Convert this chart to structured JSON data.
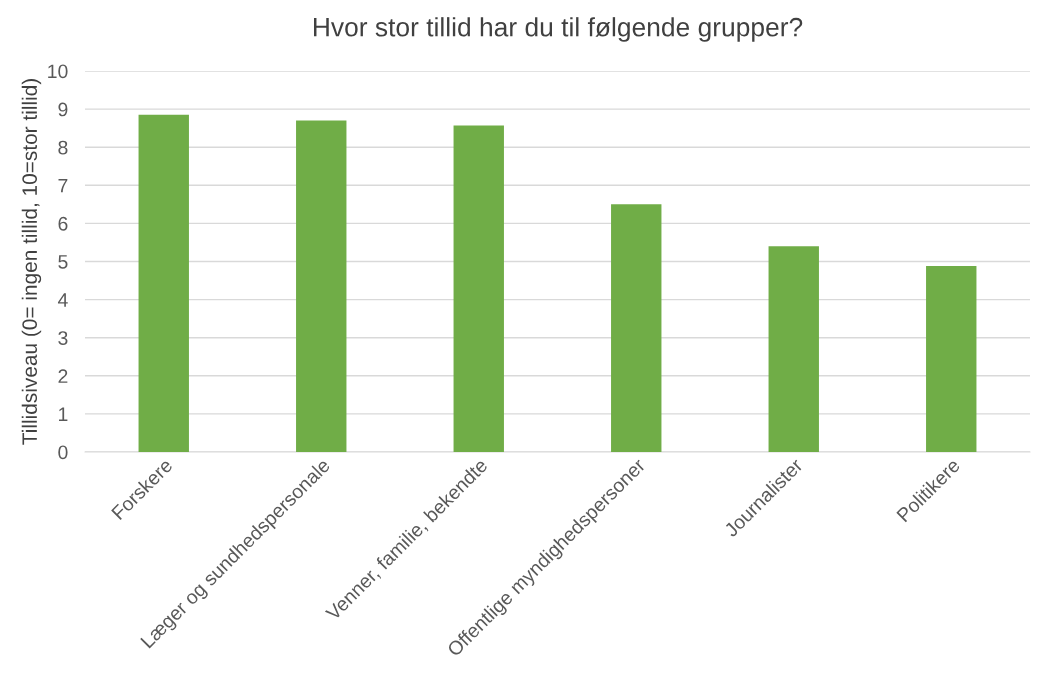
{
  "chart_data": {
    "type": "bar",
    "title": "Hvor stor tillid har du til følgende grupper?",
    "ylabel": "Tillidsiveau (0= ingen tillid, 10=stor tillid)",
    "categories": [
      "Forskere",
      "Læger og sundhedspersonale",
      "Venner, familie, bekendte",
      "Offentlige myndighedspersoner",
      "Journalister",
      "Politikere"
    ],
    "values": [
      8.85,
      8.7,
      8.57,
      6.5,
      5.4,
      4.88
    ],
    "color": "#70ad47",
    "ylim": [
      0,
      10
    ],
    "yticks": [
      0,
      1,
      2,
      3,
      4,
      5,
      6,
      7,
      8,
      9,
      10
    ],
    "grid": "y",
    "legend": false
  }
}
